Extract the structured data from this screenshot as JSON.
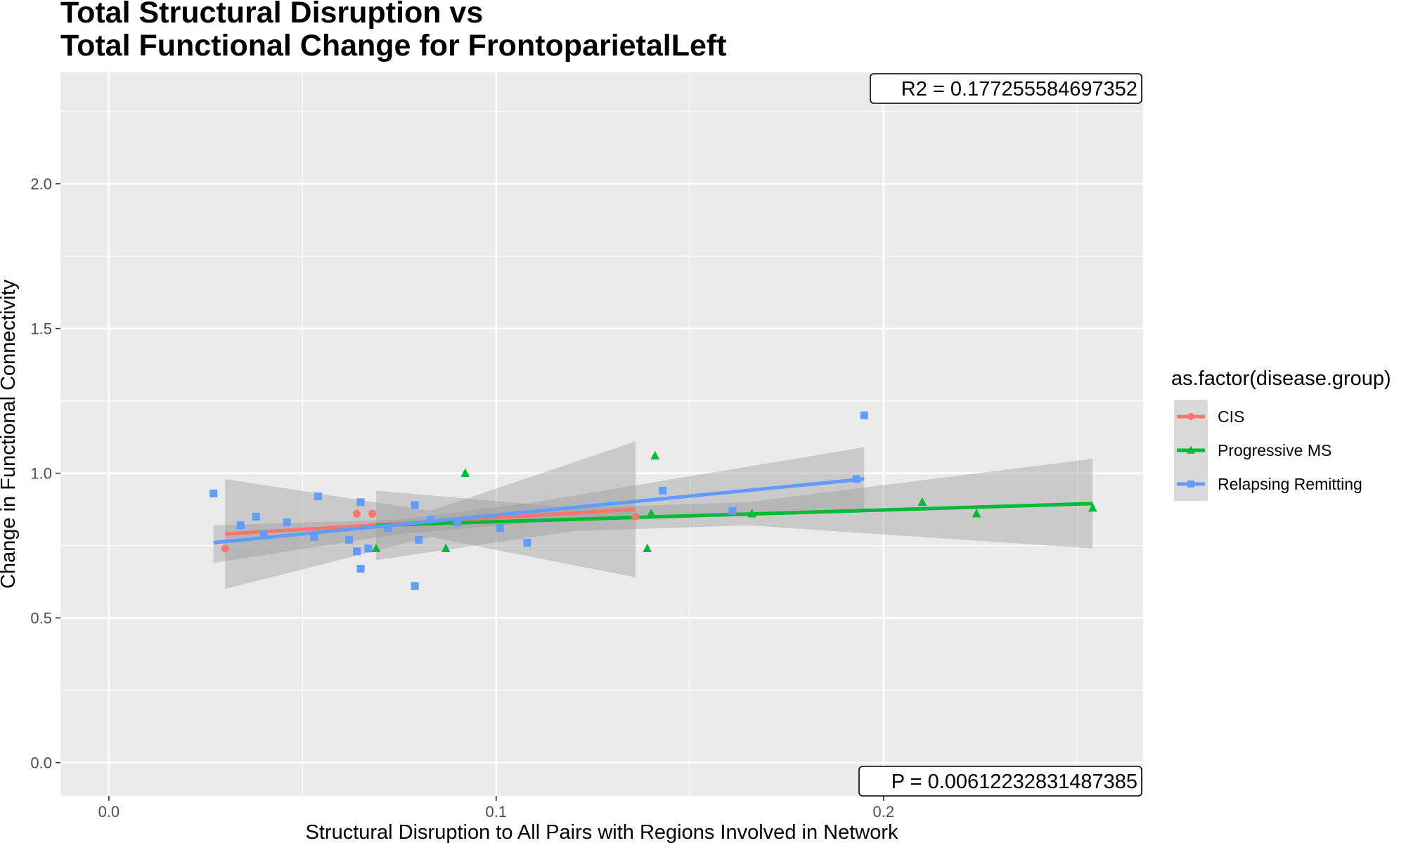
{
  "chart_data": {
    "type": "scatter",
    "title_lines": [
      "Total Structural Disruption vs",
      "Total Functional Change for FrontoparietalLeft"
    ],
    "xlabel": "Structural Disruption to All Pairs with Regions Involved in Network",
    "ylabel": "Change in Functional Connectivity",
    "xlim": [
      -0.0125,
      0.267
    ],
    "ylim": [
      -0.115,
      2.385
    ],
    "x_ticks": [
      0.0,
      0.1,
      0.2
    ],
    "x_tick_labels": [
      "0.0",
      "0.1",
      "0.2"
    ],
    "y_ticks": [
      0.0,
      0.5,
      1.0,
      1.5,
      2.0
    ],
    "y_tick_labels": [
      "0.0",
      "0.5",
      "1.0",
      "1.5",
      "2.0"
    ],
    "x_minor_ticks": [
      0.05,
      0.15,
      0.25
    ],
    "y_minor_ticks": [
      0.25,
      0.75,
      1.25,
      1.75,
      2.25
    ],
    "grid": true,
    "legend": {
      "title": "as.factor(disease.group)",
      "position": "right"
    },
    "series": [
      {
        "name": "CIS",
        "color": "#F8766D",
        "marker": "circle",
        "points": [
          [
            0.03,
            0.74
          ],
          [
            0.064,
            0.86
          ],
          [
            0.068,
            0.86
          ],
          [
            0.136,
            0.85
          ]
        ],
        "fit": {
          "x": [
            0.03,
            0.136
          ],
          "y": [
            0.79,
            0.875
          ]
        },
        "ci": {
          "x": [
            0.03,
            0.083,
            0.136
          ],
          "upper": [
            0.98,
            0.87,
            1.11
          ],
          "lower": [
            0.6,
            0.78,
            0.64
          ]
        }
      },
      {
        "name": "Progressive MS",
        "color": "#00BA38",
        "marker": "triangle",
        "points": [
          [
            0.069,
            0.74
          ],
          [
            0.087,
            0.74
          ],
          [
            0.092,
            1.0
          ],
          [
            0.139,
            0.74
          ],
          [
            0.14,
            0.86
          ],
          [
            0.141,
            1.06
          ],
          [
            0.166,
            0.86
          ],
          [
            0.21,
            0.9
          ],
          [
            0.224,
            0.86
          ],
          [
            0.254,
            0.88
          ]
        ],
        "fit": {
          "x": [
            0.069,
            0.254
          ],
          "y": [
            0.82,
            0.895
          ]
        },
        "ci": {
          "x": [
            0.069,
            0.12,
            0.165,
            0.254
          ],
          "upper": [
            0.94,
            0.88,
            0.9,
            1.05
          ],
          "lower": [
            0.7,
            0.8,
            0.82,
            0.74
          ]
        }
      },
      {
        "name": "Relapsing Remitting",
        "color": "#619CFF",
        "marker": "square",
        "points": [
          [
            0.027,
            0.93
          ],
          [
            0.034,
            0.82
          ],
          [
            0.038,
            0.85
          ],
          [
            0.04,
            0.79
          ],
          [
            0.046,
            0.83
          ],
          [
            0.053,
            0.78
          ],
          [
            0.054,
            0.92
          ],
          [
            0.062,
            0.77
          ],
          [
            0.064,
            0.73
          ],
          [
            0.065,
            0.9
          ],
          [
            0.065,
            0.67
          ],
          [
            0.067,
            0.74
          ],
          [
            0.072,
            0.81
          ],
          [
            0.079,
            0.89
          ],
          [
            0.08,
            0.77
          ],
          [
            0.083,
            0.84
          ],
          [
            0.079,
            0.61
          ],
          [
            0.09,
            0.83
          ],
          [
            0.101,
            0.81
          ],
          [
            0.108,
            0.76
          ],
          [
            0.143,
            0.94
          ],
          [
            0.161,
            0.87
          ],
          [
            0.193,
            0.98
          ],
          [
            0.195,
            1.2
          ]
        ],
        "fit": {
          "x": [
            0.027,
            0.195
          ],
          "y": [
            0.76,
            0.98
          ]
        },
        "ci": {
          "x": [
            0.027,
            0.075,
            0.11,
            0.195
          ],
          "upper": [
            0.82,
            0.84,
            0.9,
            1.09
          ],
          "lower": [
            0.69,
            0.79,
            0.83,
            0.87
          ]
        }
      }
    ],
    "annotations": {
      "r2": "R2 =  0.177255584697352",
      "p": "P =  0.00612232831487385"
    }
  },
  "colors": {
    "panel_bg": "#EBEBEB",
    "grid_major": "#FFFFFF",
    "ci_fill": "#999999"
  }
}
